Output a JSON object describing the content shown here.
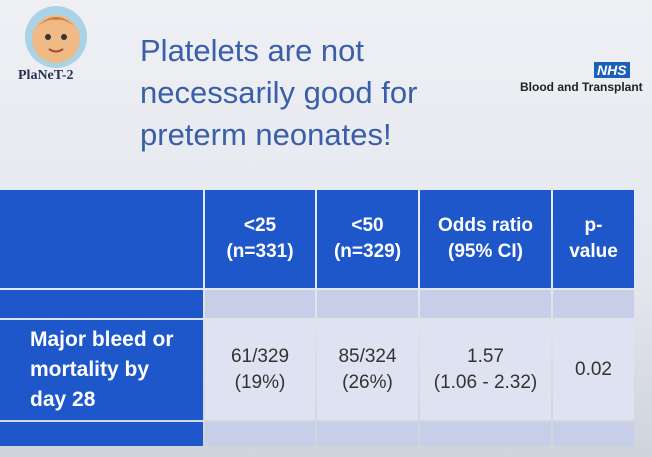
{
  "header": {
    "logo": "PlaNeT-2",
    "title_lines": [
      "Platelets are not",
      "necessarily good for",
      "preterm neonates!"
    ],
    "org_badge": "NHS",
    "org_name": "Blood and Transplant"
  },
  "table": {
    "columns": [
      [
        "<25",
        "(n=331)"
      ],
      [
        "<50",
        "(n=329)"
      ],
      [
        "Odds ratio",
        "(95% CI)"
      ],
      [
        "p-",
        "value"
      ]
    ],
    "rows": [
      {
        "label": [
          "Major bleed or",
          "mortality by",
          "day 28"
        ],
        "cells": [
          [
            "61/329",
            "(19%)"
          ],
          [
            "85/324",
            "(26%)"
          ],
          [
            "1.57",
            "(1.06 - 2.32)"
          ],
          [
            "0.02"
          ]
        ]
      }
    ]
  }
}
